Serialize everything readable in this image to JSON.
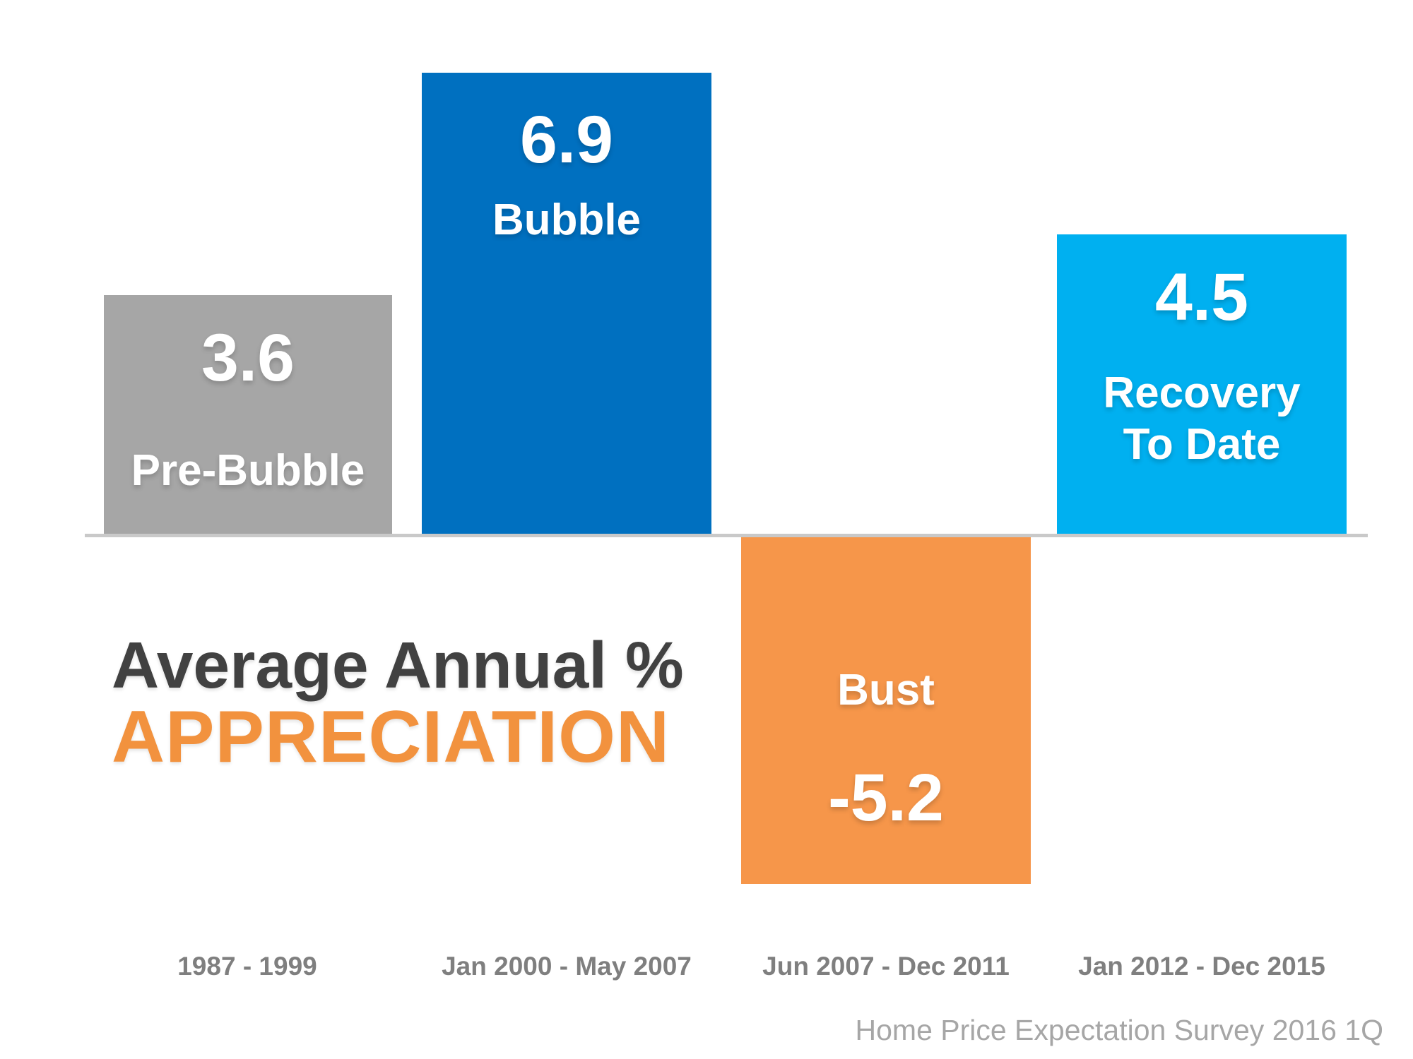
{
  "chart_data": {
    "type": "bar",
    "title_line1": "Average Annual %",
    "title_line2": "APPRECIATION",
    "source": "Home Price Expectation Survey 2016 1Q",
    "legend_position": "none",
    "grid": false,
    "ylim": [
      -5.2,
      6.9
    ],
    "categories": [
      "1987 - 1999",
      "Jan 2000 - May 2007",
      "Jun 2007 - Dec 2011",
      "Jan 2012 - Dec 2015"
    ],
    "values": [
      3.6,
      6.9,
      -5.2,
      4.5
    ],
    "bars": [
      {
        "label": "Pre-Bubble",
        "value": 3.6,
        "value_text": "3.6",
        "period": "1987 - 1999",
        "color": "#A6A6A6"
      },
      {
        "label": "Bubble",
        "value": 6.9,
        "value_text": "6.9",
        "period": "Jan 2000 - May 2007",
        "color": "#0070C0"
      },
      {
        "label": "Bust",
        "value": -5.2,
        "value_text": "-5.2",
        "period": "Jun 2007 - Dec 2011",
        "color": "#F6964A"
      },
      {
        "label": "Recovery To Date",
        "value": 4.5,
        "value_text": "4.5",
        "period": "Jan 2012 - Dec 2015",
        "color": "#00B0F0"
      }
    ],
    "baseline_color": "#C9C9C9",
    "text_colors": {
      "title": "#414141",
      "title_accent": "#F2923E",
      "bar_text": "#FFFFFF",
      "period_labels": "#7F7F7F",
      "source": "#A6A6A6"
    }
  }
}
